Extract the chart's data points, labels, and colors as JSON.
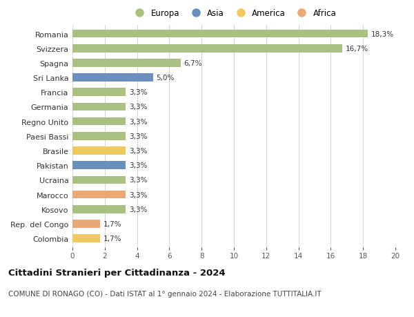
{
  "categories": [
    "Romania",
    "Svizzera",
    "Spagna",
    "Sri Lanka",
    "Francia",
    "Germania",
    "Regno Unito",
    "Paesi Bassi",
    "Brasile",
    "Pakistan",
    "Ucraina",
    "Marocco",
    "Kosovo",
    "Rep. del Congo",
    "Colombia"
  ],
  "values": [
    18.3,
    16.7,
    6.7,
    5.0,
    3.3,
    3.3,
    3.3,
    3.3,
    3.3,
    3.3,
    3.3,
    3.3,
    3.3,
    1.7,
    1.7
  ],
  "labels": [
    "18,3%",
    "16,7%",
    "6,7%",
    "5,0%",
    "3,3%",
    "3,3%",
    "3,3%",
    "3,3%",
    "3,3%",
    "3,3%",
    "3,3%",
    "3,3%",
    "3,3%",
    "1,7%",
    "1,7%"
  ],
  "continents": [
    "Europa",
    "Europa",
    "Europa",
    "Asia",
    "Europa",
    "Europa",
    "Europa",
    "Europa",
    "America",
    "Asia",
    "Europa",
    "Africa",
    "Europa",
    "Africa",
    "America"
  ],
  "continent_colors": {
    "Europa": "#a8c080",
    "Asia": "#6a8fbd",
    "America": "#f0c860",
    "Africa": "#e8a878"
  },
  "legend_order": [
    "Europa",
    "Asia",
    "America",
    "Africa"
  ],
  "xlim": [
    0,
    20
  ],
  "xticks": [
    0,
    2,
    4,
    6,
    8,
    10,
    12,
    14,
    16,
    18,
    20
  ],
  "title": "Cittadini Stranieri per Cittadinanza - 2024",
  "subtitle": "COMUNE DI RONAGO (CO) - Dati ISTAT al 1° gennaio 2024 - Elaborazione TUTTITALIA.IT",
  "bg_color": "#ffffff",
  "grid_color": "#d8d8d8",
  "bar_height": 0.55,
  "label_fontsize": 7.5,
  "ytick_fontsize": 8.0,
  "xtick_fontsize": 7.5,
  "title_fontsize": 9.5,
  "subtitle_fontsize": 7.5
}
